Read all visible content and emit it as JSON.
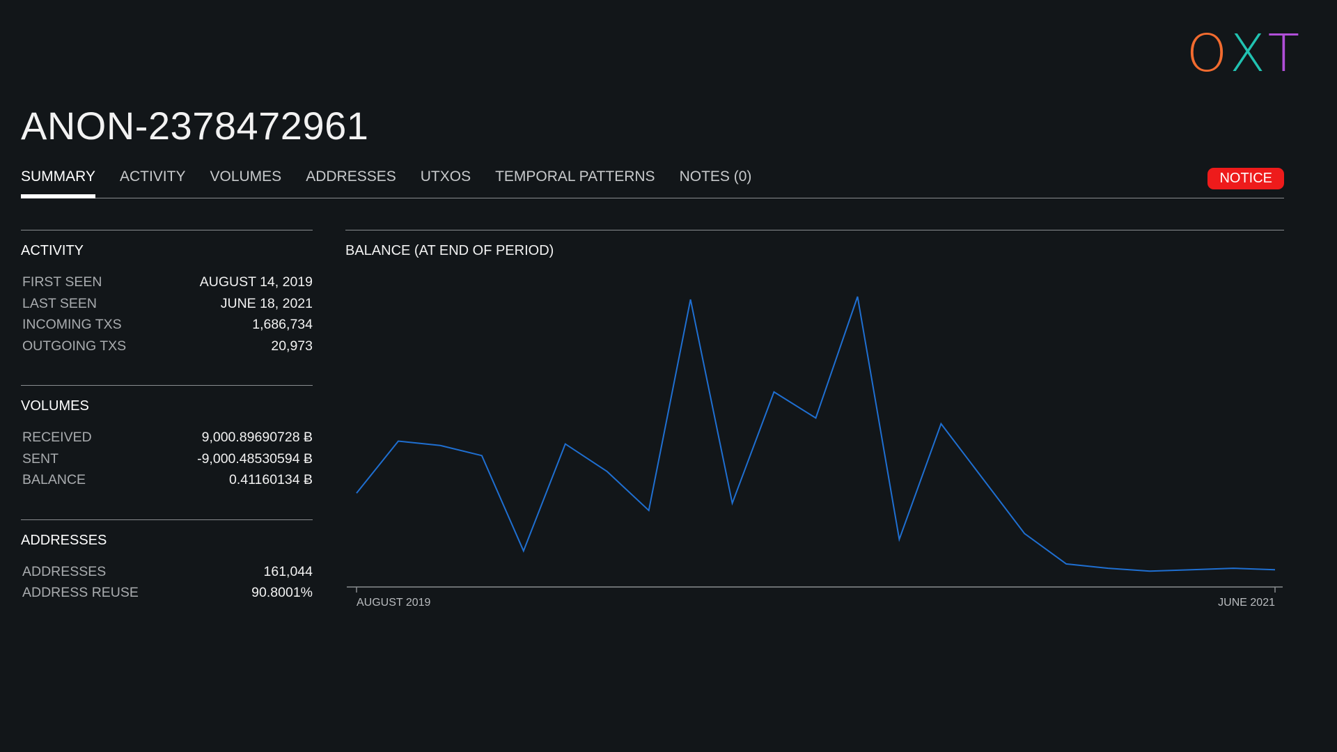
{
  "logo": {
    "letters": [
      "O",
      "X",
      "T"
    ]
  },
  "title": "ANON-2378472961",
  "tabs": [
    {
      "label": "SUMMARY",
      "active": true
    },
    {
      "label": "ACTIVITY",
      "active": false
    },
    {
      "label": "VOLUMES",
      "active": false
    },
    {
      "label": "ADDRESSES",
      "active": false
    },
    {
      "label": "UTXOS",
      "active": false
    },
    {
      "label": "TEMPORAL PATTERNS",
      "active": false
    },
    {
      "label": "NOTES (0)",
      "active": false
    }
  ],
  "notice": {
    "label": "NOTICE",
    "color": "#ee1b1b"
  },
  "activity": {
    "heading": "ACTIVITY",
    "rows": [
      {
        "label": "FIRST SEEN",
        "value": "AUGUST 14, 2019"
      },
      {
        "label": "LAST SEEN",
        "value": "JUNE 18, 2021"
      },
      {
        "label": "INCOMING TXS",
        "value": "1,686,734"
      },
      {
        "label": "OUTGOING TXS",
        "value": "20,973"
      }
    ]
  },
  "volumes": {
    "heading": "VOLUMES",
    "rows": [
      {
        "label": "RECEIVED",
        "value": "9,000.89690728 Ƀ"
      },
      {
        "label": "SENT",
        "value": "-9,000.48530594 Ƀ"
      },
      {
        "label": "BALANCE",
        "value": "0.41160134 Ƀ"
      }
    ]
  },
  "addresses": {
    "heading": "ADDRESSES",
    "rows": [
      {
        "label": "ADDRESSES",
        "value": "161,044"
      },
      {
        "label": "ADDRESS REUSE",
        "value": "90.8001%"
      }
    ]
  },
  "chart_data": {
    "type": "line",
    "title": "BALANCE (AT END OF PERIOD)",
    "x_start_label": "AUGUST 2019",
    "x_end_label": "JUNE 2021",
    "line_color": "#1f6fd1",
    "ylim": [
      0,
      100
    ],
    "series": [
      {
        "values": [
          32,
          50,
          48.5,
          45,
          12,
          49,
          39.5,
          26,
          99,
          28.5,
          67,
          58,
          100,
          16,
          56,
          37,
          18,
          7.5,
          6,
          5,
          5.5,
          6,
          5.5
        ]
      }
    ]
  }
}
